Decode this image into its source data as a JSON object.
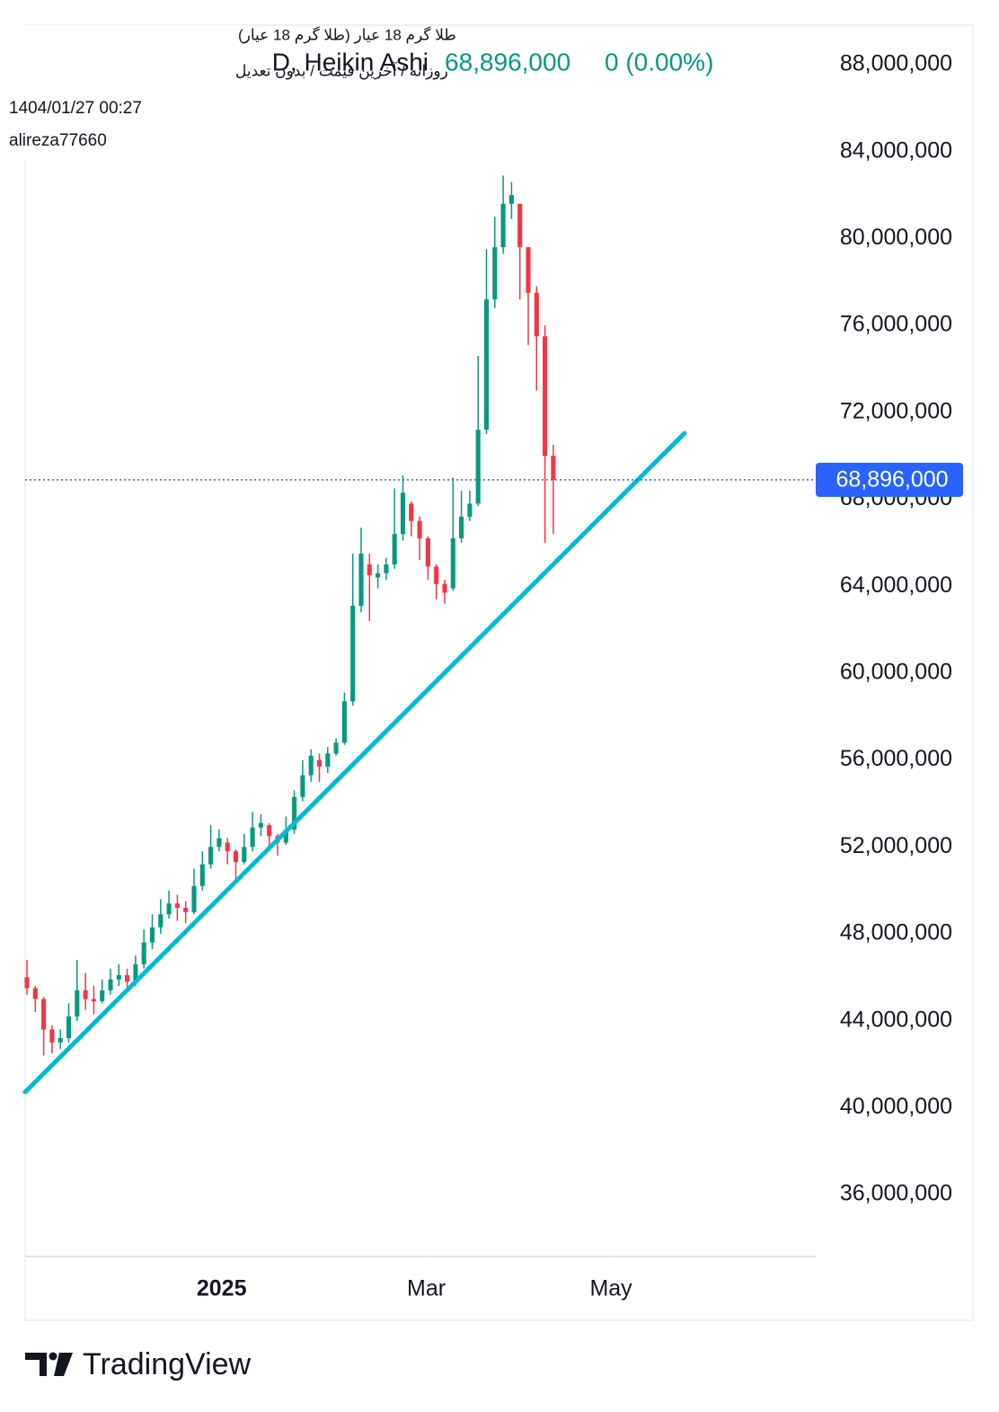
{
  "header": {
    "symbol_line": "طلا گرم 18 عیار (طلا گرم 18 عیار)",
    "settings_line": "روزانه / آخرین قیمت / بدون تعدیل",
    "timestamp": "1404/01/27 00:27",
    "author": "alireza77660"
  },
  "chart_data": {
    "type": "candlestick",
    "title": "D, Heikin Ashi",
    "last_price": {
      "value": 68896000,
      "label": "68,896,000"
    },
    "change": {
      "value": 0,
      "label": "0 (0.00%)"
    },
    "up_color": "#089981",
    "down_color": "#f23645",
    "price_line_color": "#2962ff",
    "trendline_color": "#00bcd4",
    "open": [
      46000000,
      45500000,
      45000000,
      43600000,
      43000000,
      43200000,
      44200000,
      45400000,
      45000000,
      44900000,
      45400000,
      45900000,
      46100000,
      45800000,
      46600000,
      47600000,
      48300000,
      48900000,
      49400000,
      49200000,
      49000000,
      50200000,
      51200000,
      52000000,
      52200000,
      51800000,
      51300000,
      52000000,
      52900000,
      53000000,
      52500000,
      52200000,
      52800000,
      54300000,
      55300000,
      56000000,
      55700000,
      56300000,
      56800000,
      58700000,
      63100000,
      65000000,
      64400000,
      64600000,
      65000000,
      66400000,
      67800000,
      67000000,
      66200000,
      64900000,
      64100000,
      63900000,
      66200000,
      67200000,
      67800000,
      71200000,
      77200000,
      79600000,
      81600000,
      81600000,
      79600000,
      77500000,
      75500000,
      70000000
    ],
    "high": [
      46800000,
      45600000,
      45100000,
      43800000,
      43600000,
      44800000,
      46800000,
      46200000,
      45600000,
      45900000,
      46400000,
      46600000,
      46400000,
      47000000,
      48200000,
      48900000,
      49600000,
      50000000,
      49800000,
      49500000,
      51000000,
      51800000,
      53000000,
      52800000,
      52400000,
      51900000,
      52600000,
      53600000,
      53500000,
      53100000,
      52600000,
      53400000,
      54600000,
      56000000,
      56500000,
      56300000,
      56600000,
      57000000,
      59100000,
      65500000,
      66700000,
      65500000,
      65000000,
      65300000,
      68500000,
      69100000,
      67900000,
      67200000,
      66300000,
      65000000,
      64300000,
      69000000,
      68400000,
      68400000,
      74600000,
      79500000,
      81000000,
      82900000,
      82600000,
      81600000,
      79600000,
      77800000,
      76000000,
      70500000
    ],
    "low": [
      45200000,
      44400000,
      42400000,
      42500000,
      42700000,
      43000000,
      44000000,
      44500000,
      44300000,
      44800000,
      45200000,
      45600000,
      45500000,
      45600000,
      46400000,
      47300000,
      48000000,
      48700000,
      48600000,
      48500000,
      48900000,
      50000000,
      51000000,
      51800000,
      51200000,
      50500000,
      51200000,
      51800000,
      52500000,
      52000000,
      51600000,
      52100000,
      52600000,
      54100000,
      55000000,
      55000000,
      55400000,
      56200000,
      56700000,
      58500000,
      62800000,
      62400000,
      63900000,
      64300000,
      64800000,
      66100000,
      66300000,
      65200000,
      64300000,
      63400000,
      63200000,
      63800000,
      66000000,
      67000000,
      67700000,
      71000000,
      76800000,
      79300000,
      80900000,
      77200000,
      75100000,
      73000000,
      66000000,
      66400000
    ],
    "close": [
      45500000,
      45000000,
      43600000,
      43000000,
      43200000,
      44200000,
      45400000,
      45000000,
      44900000,
      45400000,
      45900000,
      46100000,
      45800000,
      46600000,
      47600000,
      48300000,
      48900000,
      49400000,
      49200000,
      49000000,
      50200000,
      51200000,
      52000000,
      52400000,
      51800000,
      51300000,
      52000000,
      52900000,
      53100000,
      52500000,
      52200000,
      52800000,
      54300000,
      55300000,
      56200000,
      55700000,
      56300000,
      56800000,
      58700000,
      63100000,
      65500000,
      64500000,
      64600000,
      65000000,
      66400000,
      68300000,
      67000000,
      66200000,
      64900000,
      64100000,
      63700000,
      66200000,
      67200000,
      67800000,
      71200000,
      77200000,
      79600000,
      81600000,
      82000000,
      79600000,
      77500000,
      75500000,
      70000000,
      68896000
    ],
    "xlim": [
      -0.215,
      94.41
    ],
    "xticks": [
      {
        "value": 23.3,
        "label": "2025"
      },
      {
        "value": 47.8,
        "label": "Mar"
      },
      {
        "value": 69.9,
        "label": "May"
      }
    ],
    "ylim": [
      33150000,
      89820000
    ],
    "yticks": [
      {
        "value": 36000000,
        "label": "36,000,000"
      },
      {
        "value": 40000000,
        "label": "40,000,000"
      },
      {
        "value": 44000000,
        "label": "44,000,000"
      },
      {
        "value": 48000000,
        "label": "48,000,000"
      },
      {
        "value": 52000000,
        "label": "52,000,000"
      },
      {
        "value": 56000000,
        "label": "56,000,000"
      },
      {
        "value": 60000000,
        "label": "60,000,000"
      },
      {
        "value": 64000000,
        "label": "64,000,000"
      },
      {
        "value": 68000000,
        "label": "68,000,000"
      },
      {
        "value": 72000000,
        "label": "72,000,000"
      },
      {
        "value": 76000000,
        "label": "76,000,000"
      },
      {
        "value": 80000000,
        "label": "80,000,000"
      },
      {
        "value": 84000000,
        "label": "84,000,000"
      },
      {
        "value": 88000000,
        "label": "88,000,000"
      }
    ],
    "trendline": {
      "x": [
        -0.215,
        78.7
      ],
      "y": [
        40720000,
        71040000
      ]
    },
    "brand": "TradingView"
  }
}
